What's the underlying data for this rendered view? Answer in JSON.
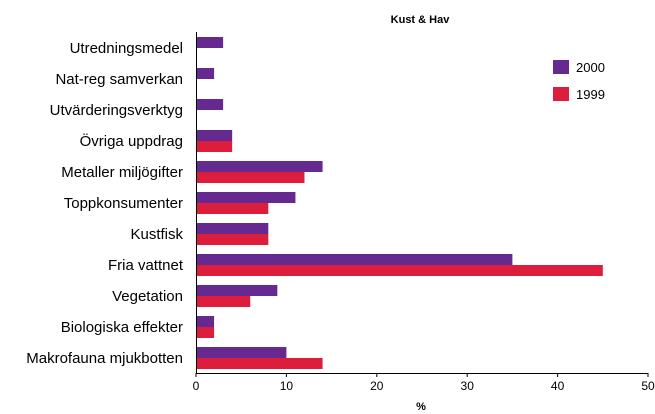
{
  "chart_data": {
    "type": "bar",
    "orientation": "horizontal",
    "title": "Kust & Hav",
    "xlabel": "%",
    "ylabel": "",
    "xlim": [
      0,
      50
    ],
    "xticks": [
      0,
      10,
      20,
      30,
      40,
      50
    ],
    "grid": false,
    "legend_position": "top-right",
    "categories": [
      "Utredningsmedel",
      "Nat-reg samverkan",
      "Utvärderingsverktyg",
      "Övriga uppdrag",
      "Metaller miljögifter",
      "Toppkonsumenter",
      "Kustfisk",
      "Fria vattnet",
      "Vegetation",
      "Biologiska effekter",
      "Makrofauna mjukbotten"
    ],
    "series": [
      {
        "name": "2000",
        "color": "#66298f",
        "values": [
          3,
          2,
          3,
          4,
          14,
          11,
          8,
          35,
          9,
          2,
          10
        ]
      },
      {
        "name": "1999",
        "color": "#dc1e3c",
        "values": [
          0,
          0,
          0,
          4,
          12,
          8,
          8,
          45,
          6,
          2,
          14
        ]
      }
    ]
  }
}
